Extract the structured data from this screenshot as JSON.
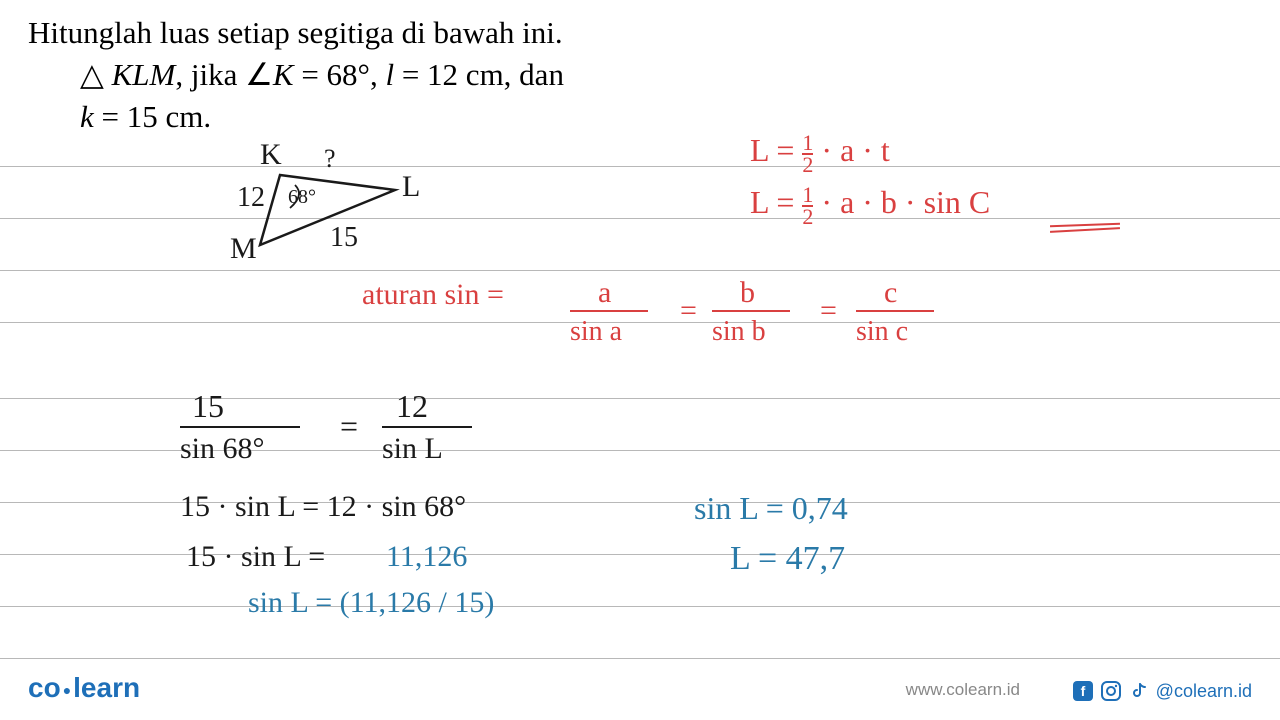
{
  "question": {
    "line1": "Hitunglah luas setiap segitiga di bawah ini.",
    "line2": "△ KLM, jika ∠K = 68°, l = 12 cm, dan",
    "line3": "k = 15 cm."
  },
  "triangle": {
    "K_label": "K",
    "L_label": "L",
    "M_label": "M",
    "angle_K": "68°",
    "side_l": "12",
    "side_k": "15",
    "question_mark": "?",
    "points": {
      "K": [
        40,
        25
      ],
      "L": [
        155,
        40
      ],
      "M": [
        20,
        95
      ]
    },
    "stroke": "#1a1a1a"
  },
  "formulas": {
    "area1": "L = ½ · a · t",
    "area2": "L = ½ · a · b · sin C",
    "sine_rule_label": "aturan sin =",
    "a": "a",
    "b": "b",
    "c": "c",
    "sina": "sin a",
    "sinb": "sin b",
    "sinc": "sin c",
    "eq": "="
  },
  "work": {
    "frac1_top": "15",
    "frac1_bot": "sin 68°",
    "frac2_top": "12",
    "frac2_bot": "sin L",
    "eq": "=",
    "step2": "15 · sin L = 12 · sin 68°",
    "step3a": "15 · sin L = ",
    "step3b": "11,126",
    "step4": "sin L = (11,126 / 15)",
    "sinL_val": "sin L = 0,74",
    "L_val": "L = 47,7"
  },
  "footer": {
    "logo_co": "co",
    "logo_learn": "learn",
    "url": "www.colearn.id",
    "handle": "@colearn.id"
  },
  "ruled_lines_y": [
    166,
    218,
    270,
    322,
    398,
    450,
    502,
    554,
    606,
    658
  ],
  "colors": {
    "black": "#1a1a1a",
    "red": "#d94040",
    "blue": "#2a7aa8",
    "rule": "#b8b8b8",
    "brand": "#1e6fb8"
  }
}
